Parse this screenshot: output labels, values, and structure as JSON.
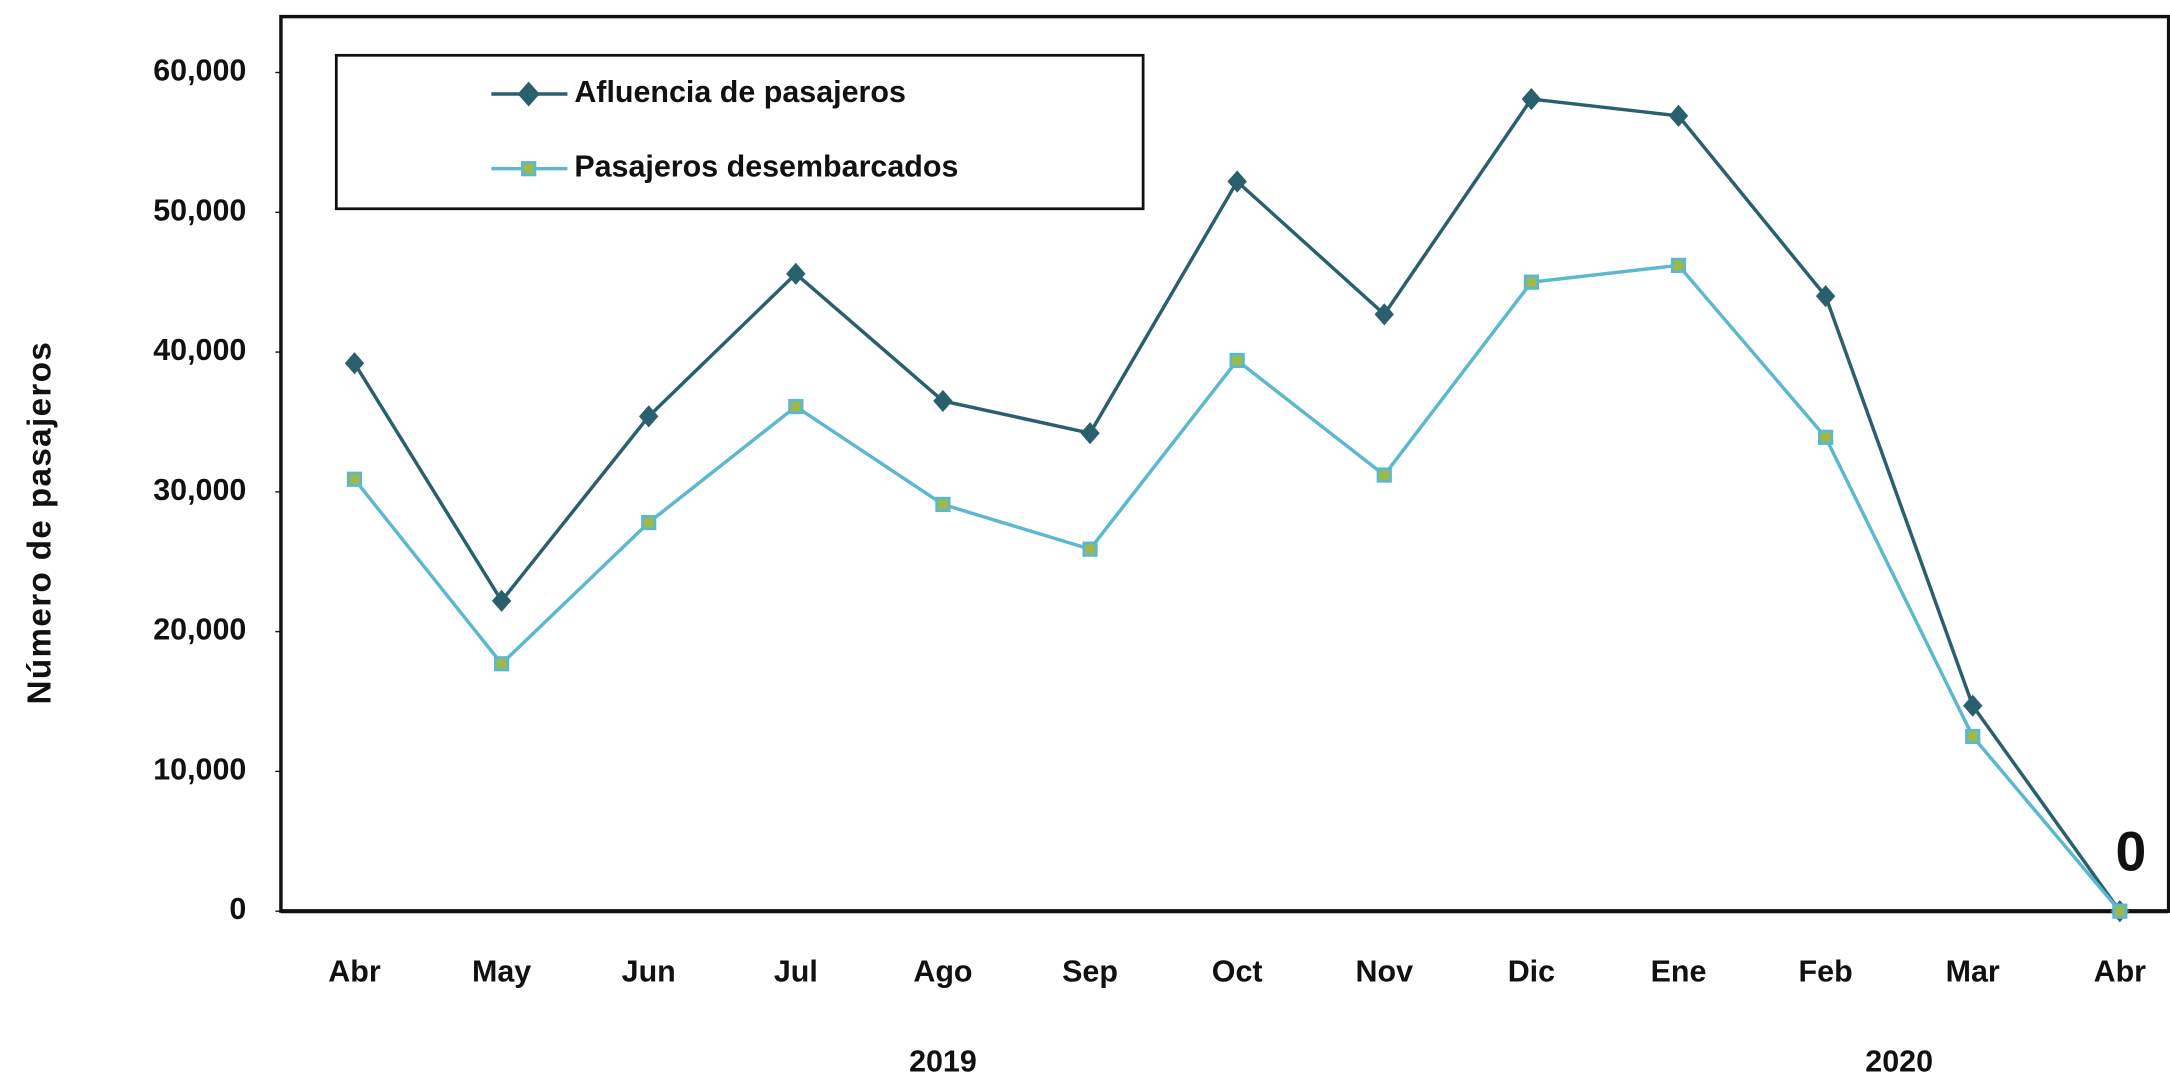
{
  "chart_data": {
    "type": "line",
    "y_label": "Número de pasajeros",
    "categories": [
      "Abr",
      "May",
      "Jun",
      "Jul",
      "Ago",
      "Sep",
      "Oct",
      "Nov",
      "Dic",
      "Ene",
      "Feb",
      "Mar",
      "Abr"
    ],
    "year_labels": [
      "2019",
      "2020"
    ],
    "series": [
      {
        "name": "Afluencia de pasajeros",
        "color": "#2a5f6e",
        "marker": "diamond",
        "values": [
          39200,
          22200,
          35400,
          45600,
          36500,
          34200,
          52200,
          42700,
          58100,
          56900,
          44000,
          14700,
          0
        ]
      },
      {
        "name": "Pasajeros desembarcados",
        "color": "#5bb8cf",
        "marker": "square",
        "values": [
          30900,
          17700,
          27800,
          36100,
          29100,
          25900,
          39400,
          31200,
          45000,
          46200,
          33900,
          12500,
          0
        ]
      }
    ],
    "ylim": [
      0,
      64000
    ],
    "yticks": [
      0,
      {
        "value": 10000,
        "label": "10,000"
      },
      {
        "value": 20000,
        "label": "20,000"
      },
      {
        "value": 30000,
        "label": "30,000"
      },
      {
        "value": 40000,
        "label": "40,000"
      },
      {
        "value": 50000,
        "label": "50,000"
      },
      {
        "value": 60000,
        "label": "60,000"
      }
    ],
    "grid": false,
    "legend": "upper left"
  }
}
